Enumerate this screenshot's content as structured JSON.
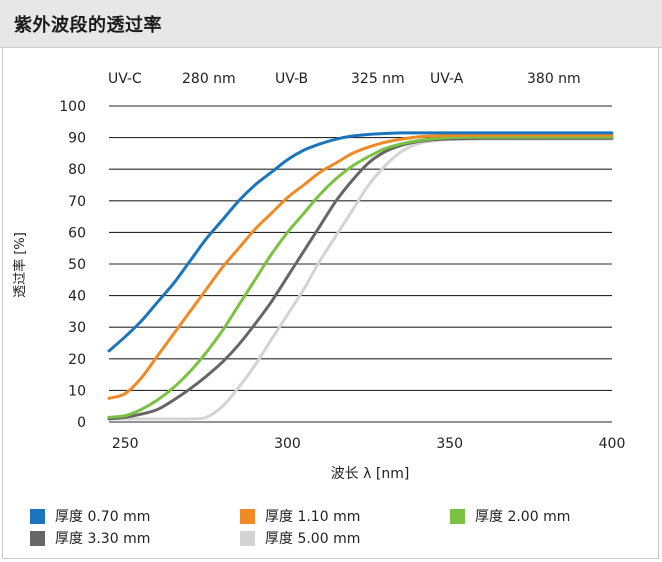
{
  "header": {
    "title": "紫外波段的透过率"
  },
  "chart_data": {
    "type": "line",
    "title": "紫外波段的透过率",
    "xlabel": "波长 λ [nm]",
    "ylabel": "透过率 [%]",
    "xlim": [
      245,
      400
    ],
    "ylim": [
      0,
      100
    ],
    "xticks": [
      250,
      300,
      350,
      400
    ],
    "yticks": [
      0,
      10,
      20,
      30,
      40,
      50,
      60,
      70,
      80,
      90,
      100
    ],
    "grid": "horizontal",
    "band_labels": [
      "UV-C",
      "280 nm",
      "UV-B",
      "325 nm",
      "UV-A",
      "380 nm"
    ],
    "series": [
      {
        "name": "厚度 0.70 mm",
        "color": "#1a75bc",
        "x": [
          245,
          250,
          255,
          260,
          265,
          270,
          275,
          280,
          285,
          290,
          295,
          300,
          305,
          310,
          315,
          320,
          325,
          330,
          335,
          340,
          350,
          360,
          380,
          400
        ],
        "y": [
          22.5,
          27,
          32,
          38,
          44,
          51,
          58,
          64,
          70,
          75,
          79,
          83,
          86,
          88,
          89.5,
          90.5,
          91,
          91.3,
          91.5,
          91.5,
          91.5,
          91.5,
          91.5,
          91.5
        ]
      },
      {
        "name": "厚度 1.10 mm",
        "color": "#f08a24",
        "x": [
          245,
          250,
          255,
          260,
          265,
          270,
          275,
          280,
          285,
          290,
          295,
          300,
          305,
          310,
          315,
          320,
          325,
          330,
          335,
          340,
          345,
          350,
          360,
          380,
          400
        ],
        "y": [
          7.5,
          9,
          14,
          21,
          28,
          35,
          42,
          49,
          55,
          61,
          66,
          71,
          75,
          79,
          82,
          85,
          87,
          88.5,
          89.5,
          90.2,
          90.5,
          90.7,
          90.8,
          90.8,
          90.8
        ]
      },
      {
        "name": "厚度 2.00 mm",
        "color": "#7cc242",
        "x": [
          245,
          250,
          255,
          260,
          265,
          270,
          275,
          280,
          285,
          290,
          295,
          300,
          305,
          310,
          315,
          320,
          325,
          330,
          335,
          340,
          345,
          350,
          360,
          380,
          400
        ],
        "y": [
          1.5,
          2,
          4,
          7,
          11,
          16,
          22,
          29,
          37,
          45,
          53,
          60,
          66,
          72,
          77,
          81,
          84,
          86.5,
          88,
          89,
          89.6,
          90,
          90.2,
          90.2,
          90.2
        ]
      },
      {
        "name": "厚度 3.30 mm",
        "color": "#666666",
        "x": [
          245,
          250,
          255,
          260,
          265,
          270,
          275,
          280,
          285,
          290,
          295,
          300,
          305,
          310,
          315,
          320,
          325,
          330,
          335,
          340,
          345,
          350,
          360,
          380,
          400
        ],
        "y": [
          1,
          1.5,
          2.5,
          4,
          7,
          10.5,
          14.5,
          19,
          24.5,
          31,
          38,
          46,
          54,
          62,
          70,
          76.5,
          82,
          85.5,
          87.5,
          88.7,
          89.3,
          89.6,
          89.8,
          89.8,
          89.8
        ]
      },
      {
        "name": "厚度 5.00 mm",
        "color": "#d3d3d3",
        "x": [
          245,
          250,
          255,
          260,
          265,
          270,
          275,
          280,
          285,
          290,
          295,
          300,
          305,
          310,
          315,
          320,
          325,
          330,
          335,
          340,
          345,
          350,
          360,
          380,
          400
        ],
        "y": [
          1,
          1,
          1,
          1,
          1,
          1,
          1.5,
          5,
          11,
          18,
          26,
          34,
          42,
          51,
          59,
          67,
          75,
          81,
          85.5,
          88,
          89,
          89.4,
          89.5,
          89.5,
          89.5
        ]
      }
    ]
  }
}
